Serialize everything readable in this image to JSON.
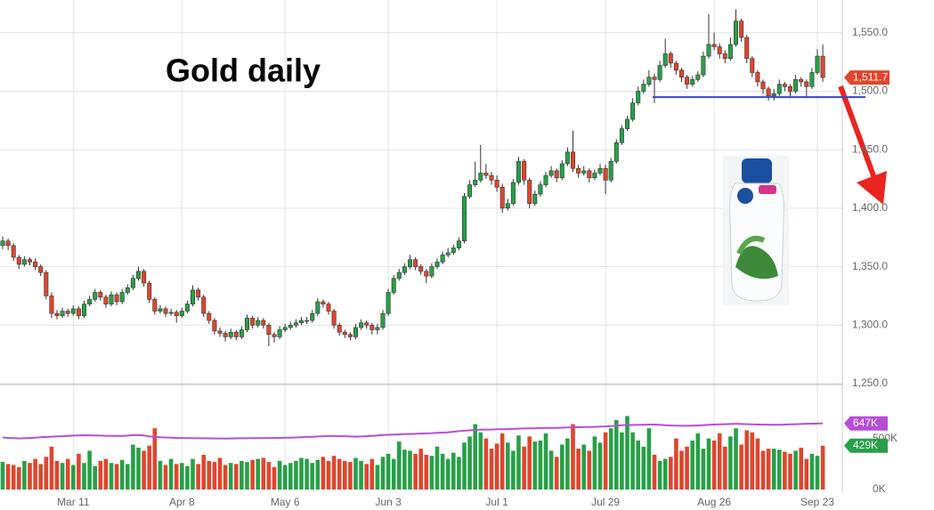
{
  "chart_data": {
    "type": "candlestick",
    "title": "Gold daily",
    "categories": [
      null,
      null,
      null,
      null,
      null,
      null,
      null,
      null,
      null,
      null,
      null,
      null,
      null,
      "Mar 11",
      null,
      null,
      null,
      null,
      null,
      null,
      null,
      null,
      null,
      null,
      null,
      null,
      null,
      null,
      null,
      null,
      null,
      null,
      null,
      "Apr 8",
      null,
      null,
      null,
      null,
      null,
      null,
      null,
      null,
      null,
      null,
      null,
      null,
      null,
      null,
      null,
      null,
      null,
      null,
      "May 6",
      null,
      null,
      null,
      null,
      null,
      null,
      null,
      null,
      null,
      null,
      null,
      null,
      null,
      null,
      null,
      null,
      null,
      null,
      "Jun 3",
      null,
      null,
      null,
      null,
      null,
      null,
      null,
      null,
      null,
      null,
      null,
      null,
      null,
      null,
      null,
      null,
      null,
      null,
      null,
      "Jul 1",
      null,
      null,
      null,
      null,
      null,
      null,
      null,
      null,
      null,
      null,
      null,
      null,
      null,
      null,
      null,
      null,
      null,
      null,
      null,
      "Jul 29",
      null,
      null,
      null,
      null,
      null,
      null,
      null,
      null,
      null,
      null,
      null,
      null,
      null,
      null,
      null,
      null,
      null,
      null,
      null,
      "Aug 26",
      null,
      null,
      null,
      null,
      null,
      null,
      null,
      null,
      null,
      null,
      null,
      null,
      null,
      null,
      null,
      null,
      null,
      null,
      "Sep 23",
      null
    ],
    "candles": [
      [
        1368,
        1376,
        1365,
        1372
      ],
      [
        1372,
        1374,
        1364,
        1368
      ],
      [
        1368,
        1370,
        1355,
        1358
      ],
      [
        1358,
        1360,
        1348,
        1352
      ],
      [
        1352,
        1359,
        1350,
        1356
      ],
      [
        1356,
        1358,
        1351,
        1354
      ],
      [
        1354,
        1357,
        1347,
        1350
      ],
      [
        1350,
        1352,
        1342,
        1345
      ],
      [
        1345,
        1347,
        1322,
        1325
      ],
      [
        1325,
        1328,
        1306,
        1310
      ],
      [
        1310,
        1313,
        1305,
        1308
      ],
      [
        1308,
        1315,
        1306,
        1312
      ],
      [
        1312,
        1314,
        1307,
        1310
      ],
      [
        1310,
        1317,
        1308,
        1314
      ],
      [
        1314,
        1316,
        1305,
        1308
      ],
      [
        1308,
        1321,
        1306,
        1318
      ],
      [
        1318,
        1325,
        1316,
        1322
      ],
      [
        1322,
        1331,
        1320,
        1328
      ],
      [
        1328,
        1330,
        1321,
        1324
      ],
      [
        1324,
        1326,
        1315,
        1318
      ],
      [
        1318,
        1329,
        1316,
        1326
      ],
      [
        1326,
        1328,
        1317,
        1320
      ],
      [
        1320,
        1331,
        1318,
        1328
      ],
      [
        1328,
        1335,
        1326,
        1332
      ],
      [
        1332,
        1343,
        1330,
        1340
      ],
      [
        1340,
        1350,
        1338,
        1346
      ],
      [
        1346,
        1348,
        1333,
        1336
      ],
      [
        1336,
        1338,
        1319,
        1322
      ],
      [
        1322,
        1324,
        1309,
        1312
      ],
      [
        1312,
        1317,
        1310,
        1314
      ],
      [
        1314,
        1316,
        1307,
        1310
      ],
      [
        1310,
        1314,
        1308,
        1311
      ],
      [
        1311,
        1313,
        1302,
        1308
      ],
      [
        1308,
        1315,
        1306,
        1312
      ],
      [
        1312,
        1321,
        1310,
        1318
      ],
      [
        1318,
        1334,
        1316,
        1330
      ],
      [
        1330,
        1332,
        1321,
        1324
      ],
      [
        1324,
        1326,
        1307,
        1310
      ],
      [
        1310,
        1312,
        1301,
        1304
      ],
      [
        1304,
        1306,
        1292,
        1295
      ],
      [
        1295,
        1298,
        1290,
        1293
      ],
      [
        1293,
        1295,
        1286,
        1290
      ],
      [
        1290,
        1297,
        1288,
        1294
      ],
      [
        1294,
        1296,
        1287,
        1290
      ],
      [
        1290,
        1299,
        1288,
        1296
      ],
      [
        1296,
        1309,
        1294,
        1306
      ],
      [
        1306,
        1308,
        1297,
        1300
      ],
      [
        1300,
        1307,
        1298,
        1304
      ],
      [
        1304,
        1306,
        1297,
        1300
      ],
      [
        1300,
        1302,
        1282,
        1292
      ],
      [
        1292,
        1294,
        1285,
        1290
      ],
      [
        1290,
        1299,
        1288,
        1296
      ],
      [
        1296,
        1301,
        1294,
        1298
      ],
      [
        1298,
        1303,
        1296,
        1300
      ],
      [
        1300,
        1305,
        1298,
        1302
      ],
      [
        1302,
        1307,
        1300,
        1304
      ],
      [
        1304,
        1307,
        1301,
        1304
      ],
      [
        1304,
        1313,
        1302,
        1310
      ],
      [
        1310,
        1323,
        1308,
        1320
      ],
      [
        1320,
        1322,
        1315,
        1318
      ],
      [
        1318,
        1320,
        1309,
        1312
      ],
      [
        1312,
        1314,
        1297,
        1300
      ],
      [
        1300,
        1302,
        1291,
        1294
      ],
      [
        1294,
        1296,
        1289,
        1292
      ],
      [
        1292,
        1294,
        1287,
        1290
      ],
      [
        1290,
        1301,
        1288,
        1298
      ],
      [
        1298,
        1305,
        1296,
        1302
      ],
      [
        1302,
        1304,
        1297,
        1300
      ],
      [
        1300,
        1302,
        1292,
        1296
      ],
      [
        1296,
        1301,
        1292,
        1298
      ],
      [
        1298,
        1313,
        1296,
        1310
      ],
      [
        1310,
        1331,
        1308,
        1328
      ],
      [
        1328,
        1343,
        1326,
        1340
      ],
      [
        1340,
        1348,
        1338,
        1345
      ],
      [
        1345,
        1353,
        1343,
        1350
      ],
      [
        1350,
        1360,
        1348,
        1356
      ],
      [
        1356,
        1358,
        1347,
        1350
      ],
      [
        1350,
        1352,
        1343,
        1346
      ],
      [
        1346,
        1348,
        1336,
        1342
      ],
      [
        1342,
        1353,
        1340,
        1350
      ],
      [
        1350,
        1357,
        1348,
        1354
      ],
      [
        1354,
        1363,
        1352,
        1360
      ],
      [
        1360,
        1366,
        1358,
        1362
      ],
      [
        1362,
        1369,
        1360,
        1366
      ],
      [
        1366,
        1375,
        1364,
        1372
      ],
      [
        1372,
        1413,
        1370,
        1410
      ],
      [
        1410,
        1424,
        1408,
        1420
      ],
      [
        1420,
        1440,
        1418,
        1424
      ],
      [
        1424,
        1454,
        1422,
        1430
      ],
      [
        1430,
        1438,
        1425,
        1428
      ],
      [
        1428,
        1431,
        1420,
        1424
      ],
      [
        1424,
        1428,
        1414,
        1418
      ],
      [
        1418,
        1421,
        1396,
        1400
      ],
      [
        1400,
        1408,
        1398,
        1404
      ],
      [
        1404,
        1425,
        1402,
        1422
      ],
      [
        1422,
        1444,
        1420,
        1440
      ],
      [
        1440,
        1442,
        1420,
        1424
      ],
      [
        1424,
        1426,
        1400,
        1404
      ],
      [
        1404,
        1415,
        1402,
        1412
      ],
      [
        1412,
        1423,
        1410,
        1420
      ],
      [
        1420,
        1431,
        1418,
        1428
      ],
      [
        1428,
        1436,
        1426,
        1432
      ],
      [
        1432,
        1434,
        1422,
        1426
      ],
      [
        1426,
        1441,
        1424,
        1438
      ],
      [
        1438,
        1452,
        1436,
        1448
      ],
      [
        1448,
        1466,
        1431,
        1434
      ],
      [
        1434,
        1437,
        1426,
        1430
      ],
      [
        1430,
        1436,
        1428,
        1432
      ],
      [
        1432,
        1434,
        1422,
        1426
      ],
      [
        1426,
        1433,
        1424,
        1430
      ],
      [
        1430,
        1438,
        1428,
        1434
      ],
      [
        1434,
        1437,
        1412,
        1424
      ],
      [
        1424,
        1443,
        1422,
        1440
      ],
      [
        1440,
        1459,
        1438,
        1456
      ],
      [
        1456,
        1471,
        1454,
        1468
      ],
      [
        1468,
        1479,
        1466,
        1476
      ],
      [
        1476,
        1494,
        1474,
        1490
      ],
      [
        1490,
        1504,
        1488,
        1500
      ],
      [
        1500,
        1510,
        1498,
        1506
      ],
      [
        1506,
        1518,
        1504,
        1512
      ],
      [
        1512,
        1515,
        1490,
        1510
      ],
      [
        1510,
        1526,
        1508,
        1522
      ],
      [
        1522,
        1545,
        1520,
        1532
      ],
      [
        1532,
        1534,
        1520,
        1524
      ],
      [
        1524,
        1526,
        1514,
        1518
      ],
      [
        1518,
        1520,
        1508,
        1512
      ],
      [
        1512,
        1514,
        1502,
        1506
      ],
      [
        1506,
        1513,
        1504,
        1510
      ],
      [
        1510,
        1517,
        1508,
        1514
      ],
      [
        1514,
        1534,
        1512,
        1530
      ],
      [
        1530,
        1566,
        1528,
        1540
      ],
      [
        1540,
        1550,
        1535,
        1538
      ],
      [
        1538,
        1541,
        1528,
        1532
      ],
      [
        1532,
        1535,
        1524,
        1528
      ],
      [
        1528,
        1546,
        1526,
        1540
      ],
      [
        1540,
        1570,
        1538,
        1560
      ],
      [
        1560,
        1562,
        1542,
        1546
      ],
      [
        1546,
        1548,
        1524,
        1528
      ],
      [
        1528,
        1530,
        1512,
        1516
      ],
      [
        1516,
        1518,
        1504,
        1508
      ],
      [
        1508,
        1510,
        1498,
        1502
      ],
      [
        1502,
        1504,
        1492,
        1496
      ],
      [
        1496,
        1502,
        1492,
        1498
      ],
      [
        1498,
        1510,
        1496,
        1506
      ],
      [
        1506,
        1508,
        1500,
        1504
      ],
      [
        1504,
        1506,
        1494,
        1500
      ],
      [
        1500,
        1514,
        1498,
        1510
      ],
      [
        1510,
        1512,
        1504,
        1508
      ],
      [
        1508,
        1510,
        1494,
        1504
      ],
      [
        1504,
        1520,
        1502,
        1516
      ],
      [
        1516,
        1536,
        1514,
        1530
      ],
      [
        1530,
        1540,
        1508,
        1511.7
      ]
    ],
    "up_color": "#27a047",
    "down_color": "#e0452d",
    "ylim": [
      1250,
      1578
    ],
    "yticks": [
      {
        "value": 1250,
        "label": "1,250.0"
      },
      {
        "value": 1300,
        "label": "1,300.0"
      },
      {
        "value": 1350,
        "label": "1,350.0"
      },
      {
        "value": 1400,
        "label": "1,400.0"
      },
      {
        "value": 1450,
        "label": "1,450.0"
      },
      {
        "value": 1500,
        "label": "1,500.0"
      },
      {
        "value": 1550,
        "label": "1,550.0"
      }
    ],
    "grid": true,
    "last_label": "1,511.7",
    "support_line": 1495,
    "support_color": "#3848b8",
    "volume": {
      "values": [
        270,
        250,
        240,
        220,
        280,
        260,
        300,
        250,
        320,
        420,
        280,
        260,
        300,
        240,
        350,
        260,
        380,
        230,
        280,
        300,
        260,
        250,
        290,
        250,
        440,
        410,
        380,
        430,
        600,
        280,
        240,
        300,
        250,
        260,
        230,
        300,
        250,
        340,
        280,
        270,
        310,
        240,
        260,
        250,
        280,
        270,
        290,
        300,
        310,
        270,
        220,
        280,
        240,
        260,
        280,
        310,
        300,
        260,
        290,
        320,
        280,
        330,
        300,
        280,
        270,
        310,
        280,
        250,
        300,
        240,
        320,
        350,
        300,
        470,
        390,
        380,
        350,
        400,
        340,
        330,
        420,
        350,
        300,
        360,
        320,
        460,
        520,
        640,
        560,
        500,
        400,
        450,
        550,
        460,
        380,
        530,
        420,
        520,
        470,
        480,
        550,
        380,
        320,
        440,
        500,
        640,
        400,
        440,
        380,
        520,
        460,
        560,
        600,
        680,
        560,
        720,
        560,
        480,
        420,
        600,
        340,
        280,
        300,
        320,
        500,
        380,
        420,
        480,
        550,
        400,
        500,
        480,
        550,
        420,
        520,
        600,
        440,
        580,
        560,
        500,
        380,
        400,
        400,
        390,
        370,
        350,
        380,
        410,
        300,
        350,
        330,
        429
      ],
      "ylim": [
        0,
        1020
      ],
      "yticks": [
        {
          "value": 0,
          "label": "0K"
        },
        {
          "value": 500,
          "label": "500K"
        }
      ],
      "last_label": "429K"
    },
    "volume_ma": {
      "color": "#b64fd6",
      "last_label": "647K",
      "values": [
        510,
        506,
        504,
        500,
        502,
        505,
        508,
        512,
        515,
        518,
        520,
        522,
        525,
        528,
        530,
        532,
        531,
        530,
        528,
        527,
        526,
        525,
        524,
        528,
        532,
        534,
        530,
        520,
        515,
        512,
        510,
        508,
        506,
        505,
        504,
        503,
        502,
        502,
        501,
        500,
        500,
        499,
        500,
        501,
        502,
        502,
        503,
        503,
        504,
        505,
        505,
        506,
        507,
        508,
        510,
        512,
        514,
        516,
        520,
        522,
        524,
        524,
        523,
        522,
        520,
        518,
        520,
        522,
        526,
        530,
        534,
        536,
        538,
        540,
        542,
        544,
        546,
        548,
        550,
        552,
        555,
        558,
        560,
        566,
        572,
        576,
        580,
        584,
        586,
        588,
        588,
        590,
        590,
        592,
        594,
        596,
        598,
        600,
        600,
        602,
        602,
        604,
        604,
        606,
        608,
        610,
        610,
        612,
        612,
        614,
        616,
        618,
        622,
        626,
        630,
        632,
        632,
        634,
        634,
        636,
        636,
        634,
        630,
        628,
        626,
        624,
        624,
        626,
        628,
        630,
        634,
        636,
        638,
        640,
        642,
        644,
        642,
        640,
        638,
        636,
        636,
        634,
        634,
        634,
        636,
        638,
        640,
        642,
        644,
        645,
        646,
        647
      ]
    }
  }
}
